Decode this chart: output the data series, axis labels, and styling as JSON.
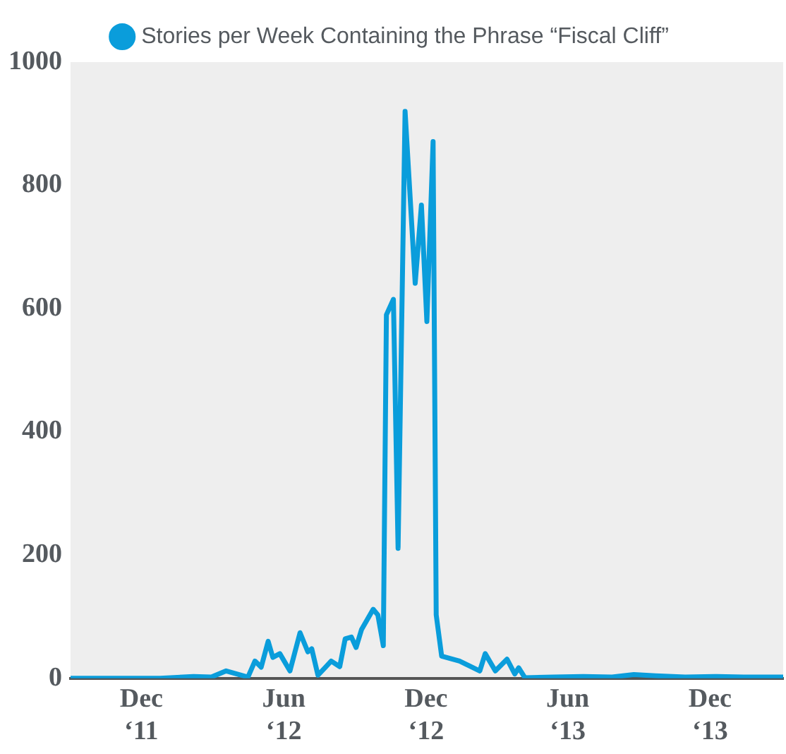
{
  "chart_data": {
    "type": "line",
    "legend": "top",
    "marker": "none",
    "grid": false,
    "line_style": "solid",
    "x": [
      "2011-09-01",
      "2011-10-11",
      "2011-11-18",
      "2011-12-25",
      "2012-02-06",
      "2012-02-29",
      "2012-03-19",
      "2012-04-16",
      "2012-04-25",
      "2012-05-03",
      "2012-05-12",
      "2012-05-18",
      "2012-05-27",
      "2012-06-09",
      "2012-06-22",
      "2012-07-02",
      "2012-07-07",
      "2012-07-15",
      "2012-07-24",
      "2012-08-01",
      "2012-08-12",
      "2012-08-19",
      "2012-08-27",
      "2012-09-02",
      "2012-09-09",
      "2012-09-24",
      "2012-09-30",
      "2012-10-07",
      "2012-10-11",
      "2012-10-20",
      "2012-10-26",
      "2012-11-04",
      "2012-11-17",
      "2012-11-25",
      "2012-12-02",
      "2012-12-10",
      "2012-12-14",
      "2012-12-21",
      "2013-01-13",
      "2013-02-08",
      "2013-02-15",
      "2013-02-28",
      "2013-03-15",
      "2013-03-25",
      "2013-03-30",
      "2013-04-07",
      "2013-05-14",
      "2013-06-21",
      "2013-07-28",
      "2013-08-25",
      "2013-09-22",
      "2013-10-30",
      "2013-12-07",
      "2014-01-13",
      "2014-03-05"
    ],
    "series": [
      {
        "name": "Stories per Week Containing the Phrase “Fiscal Cliff”",
        "color": "#0a9ddb",
        "values": [
          0,
          0,
          0,
          0,
          3,
          2,
          12,
          2,
          28,
          18,
          60,
          34,
          40,
          12,
          74,
          43,
          48,
          5,
          17,
          28,
          19,
          64,
          67,
          50,
          79,
          112,
          103,
          53,
          590,
          615,
          211,
          920,
          641,
          768,
          579,
          871,
          103,
          36,
          28,
          12,
          40,
          12,
          31,
          7,
          17,
          1,
          2,
          3,
          2,
          6,
          4,
          2,
          3,
          2,
          2
        ]
      }
    ],
    "xlim": [
      "2011-09-01",
      "2014-03-05"
    ],
    "xticks": [
      {
        "value": "2011-12-01",
        "label": "Dec ‘11"
      },
      {
        "value": "2012-06-01",
        "label": "Jun ‘12"
      },
      {
        "value": "2012-12-01",
        "label": "Dec ‘12"
      },
      {
        "value": "2013-06-01",
        "label": "Jun ‘13"
      },
      {
        "value": "2013-12-01",
        "label": "Dec ‘13"
      }
    ],
    "ylim": [
      0,
      1000
    ],
    "yticks": [
      0,
      200,
      400,
      600,
      800,
      1000
    ]
  }
}
